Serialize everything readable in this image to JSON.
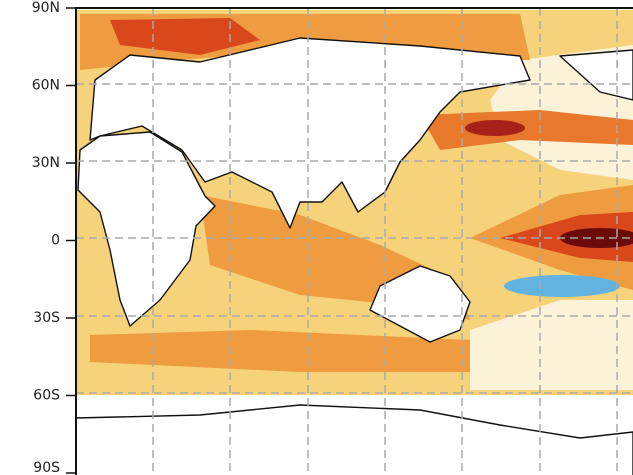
{
  "axis": {
    "lat_labels": [
      "90N",
      "60N",
      "30N",
      "0",
      "30S",
      "60S",
      "90S"
    ]
  }
}
